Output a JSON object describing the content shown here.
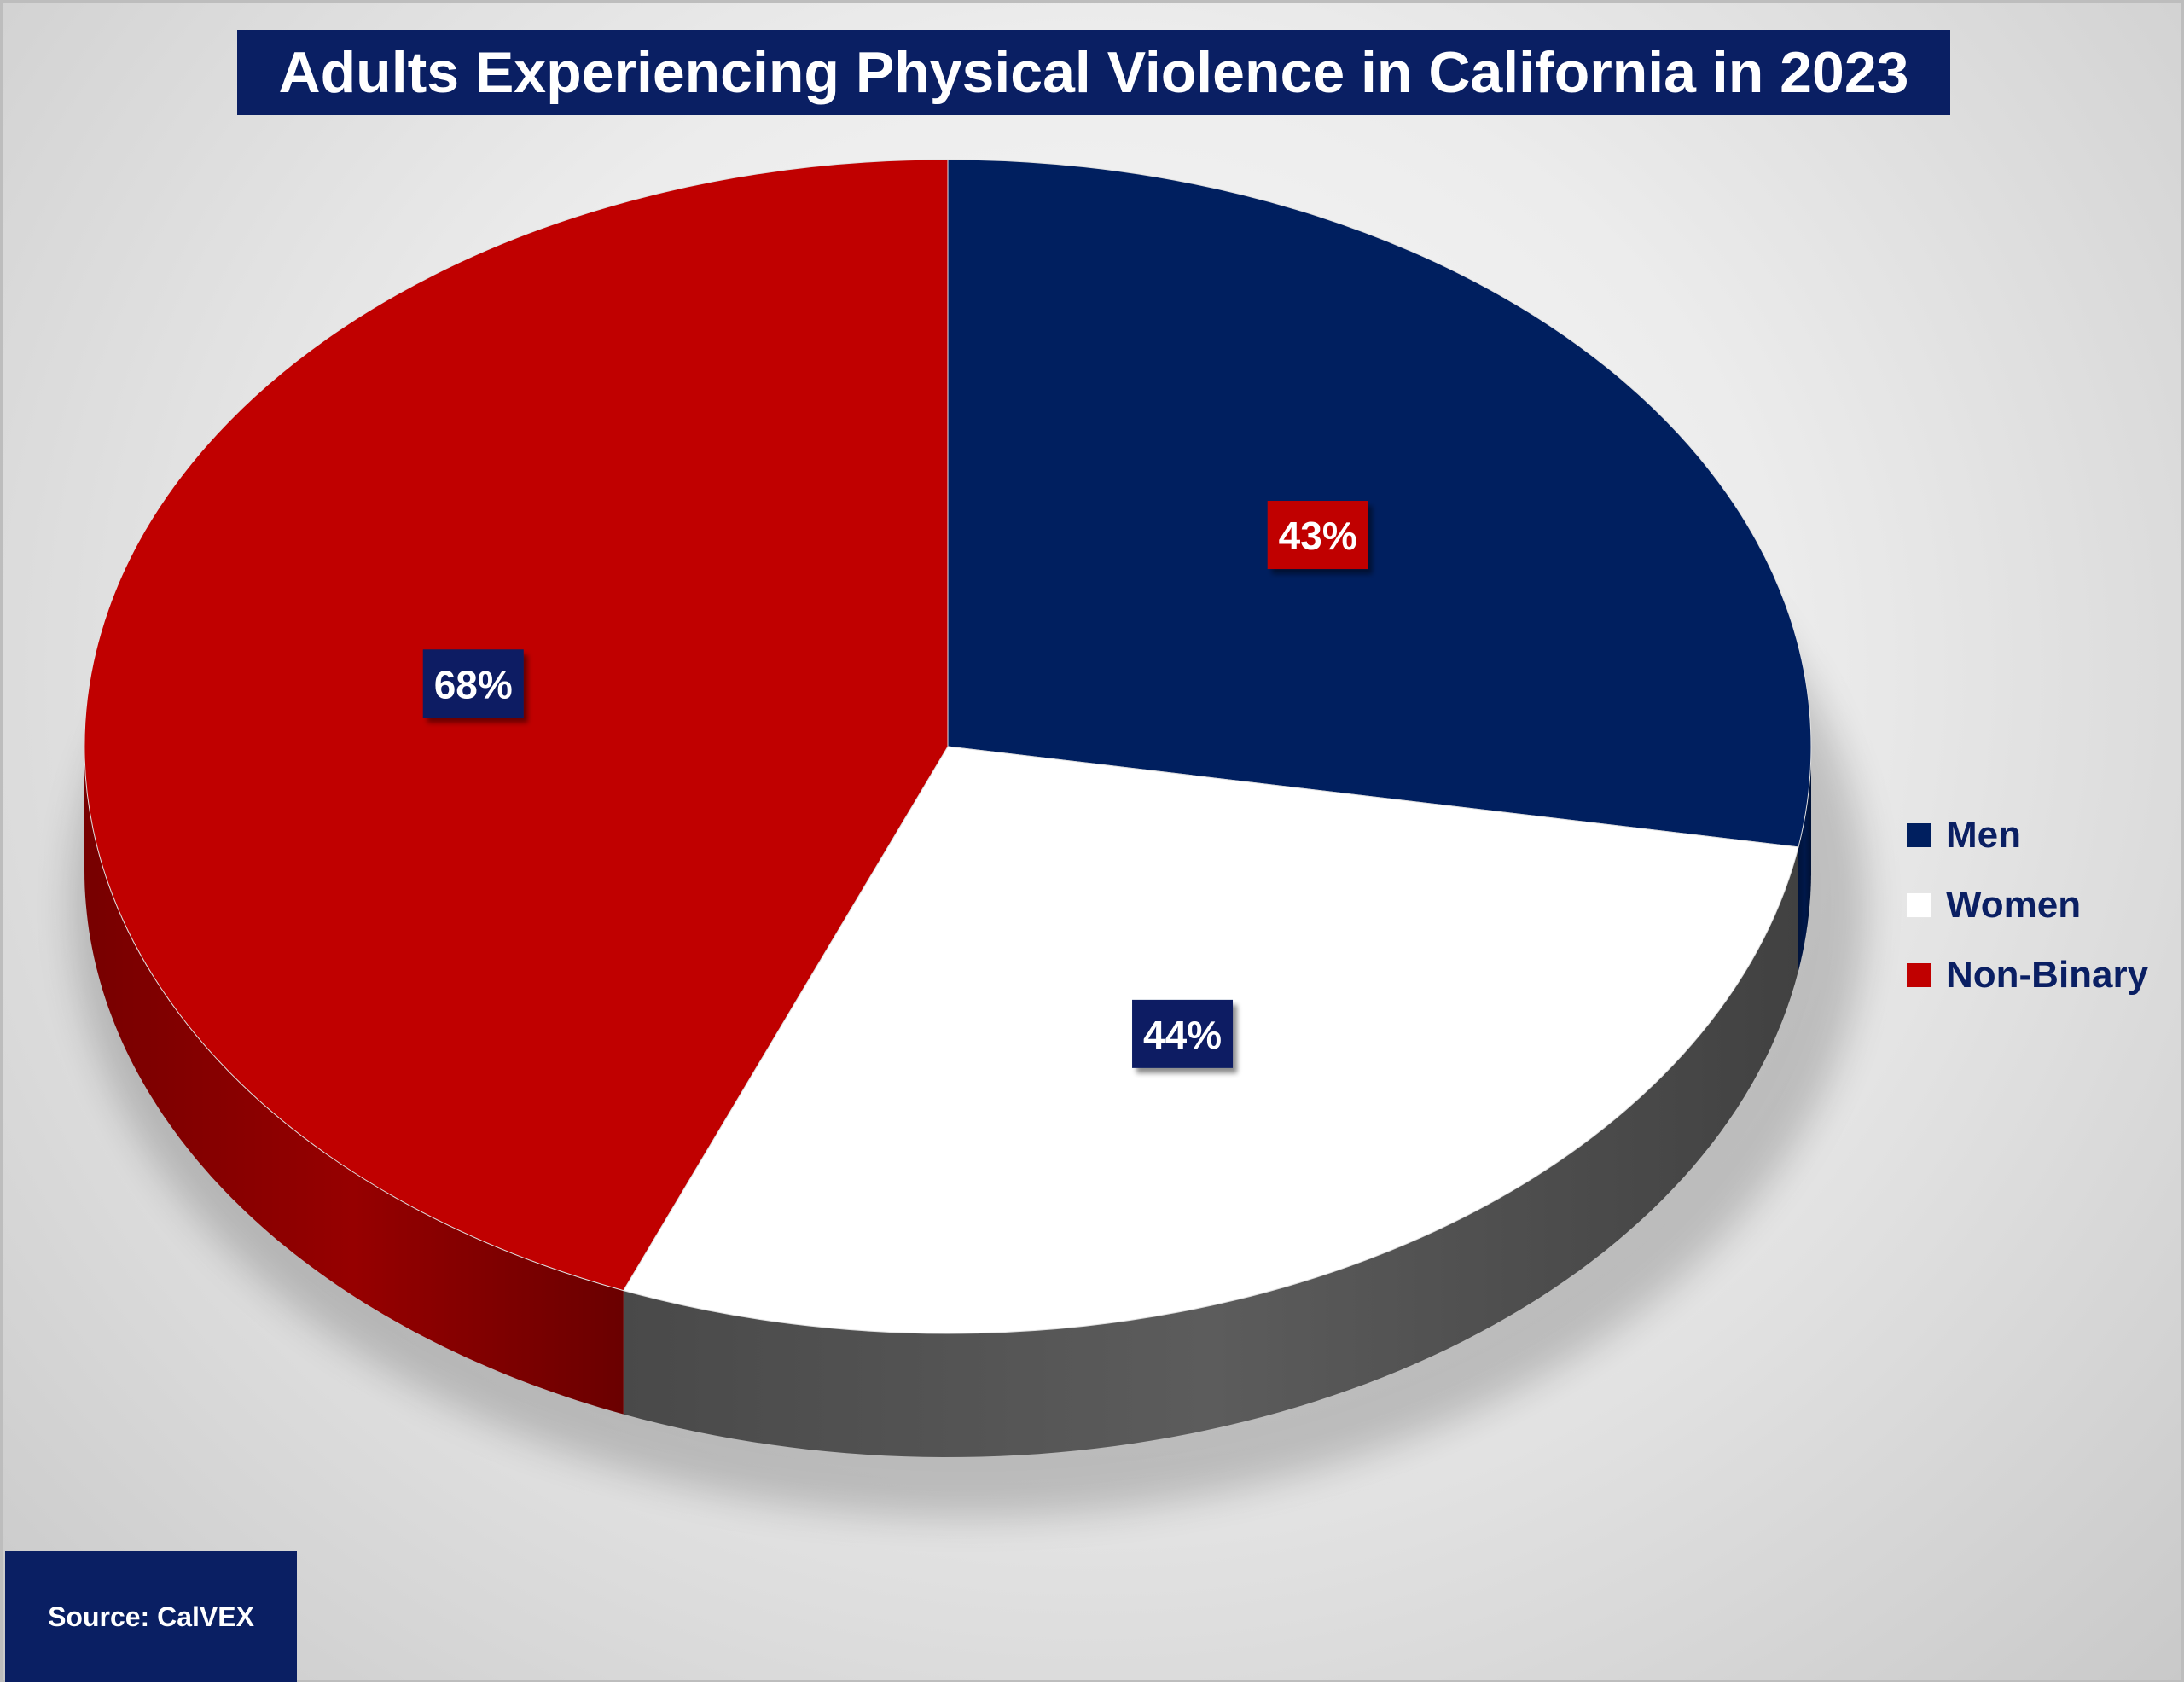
{
  "chart_data": {
    "type": "pie",
    "title": "Adults Experiencing Physical Violence in California in 2023",
    "categories": [
      "Men",
      "Women",
      "Non-Binary"
    ],
    "values": [
      43,
      44,
      68
    ],
    "data_labels": [
      "43%",
      "44%",
      "68%"
    ],
    "colors": [
      "#001f5f",
      "#ffffff",
      "#c00000"
    ],
    "label_box_colors": [
      "#c00000",
      "#0a1f63",
      "#0a1f63"
    ],
    "legend_placement": "right",
    "style": "3d-pie",
    "source": "Source: CalVEX"
  }
}
